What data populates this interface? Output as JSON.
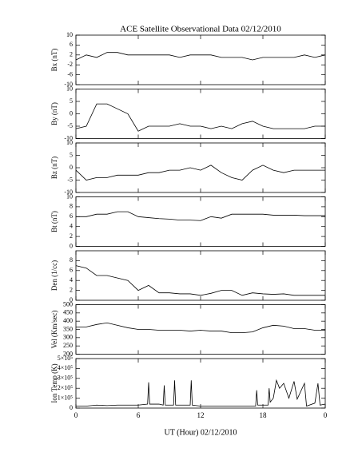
{
  "title": "ACE Satellite Observational Data   02/12/2010",
  "xlabel": "UT (Hour)  02/12/2010",
  "xlim": [
    0,
    24
  ],
  "xticks": [
    0,
    6,
    12,
    18,
    {
      "value": 24,
      "label": "0"
    }
  ],
  "chart_data": [
    {
      "type": "line",
      "ylabel": "Bx (nT)",
      "color": "#000000",
      "ylim": [
        -10,
        10
      ],
      "yticks": [
        -10,
        -6,
        -2,
        2,
        6,
        10
      ],
      "x": [
        0,
        1,
        2,
        3,
        4,
        5,
        6,
        7,
        8,
        9,
        10,
        11,
        12,
        13,
        14,
        15,
        16,
        17,
        18,
        19,
        20,
        21,
        22,
        23,
        24
      ],
      "values": [
        0,
        2,
        1,
        3,
        3,
        2,
        2,
        2,
        2,
        2,
        1,
        2,
        2,
        2,
        1,
        1,
        1,
        0,
        1,
        1,
        1,
        1,
        2,
        1,
        2
      ]
    },
    {
      "type": "line",
      "ylabel": "By (nT)",
      "color": "#000000",
      "ylim": [
        -10,
        10
      ],
      "yticks": [
        -10,
        -5,
        0,
        5,
        10
      ],
      "x": [
        0,
        1,
        2,
        3,
        4,
        5,
        6,
        7,
        8,
        9,
        10,
        11,
        12,
        13,
        14,
        15,
        16,
        17,
        18,
        19,
        20,
        21,
        22,
        23,
        24
      ],
      "values": [
        -6,
        -5,
        4,
        4,
        2,
        0,
        -7,
        -5,
        -5,
        -5,
        -4,
        -5,
        -5,
        -6,
        -5,
        -6,
        -4,
        -3,
        -5,
        -6,
        -6,
        -6,
        -6,
        -5,
        -5
      ]
    },
    {
      "type": "line",
      "ylabel": "Bz (nT)",
      "color": "#000000",
      "ylim": [
        -10,
        10
      ],
      "yticks": [
        -10,
        -5,
        0,
        5,
        10
      ],
      "x": [
        0,
        1,
        2,
        3,
        4,
        5,
        6,
        7,
        8,
        9,
        10,
        11,
        12,
        13,
        14,
        15,
        16,
        17,
        18,
        19,
        20,
        21,
        22,
        23,
        24
      ],
      "values": [
        -1,
        -5,
        -4,
        -4,
        -3,
        -3,
        -3,
        -2,
        -2,
        -1,
        -1,
        0,
        -1,
        1,
        -2,
        -4,
        -5,
        -1,
        1,
        -1,
        -2,
        -1,
        -1,
        -1,
        -1
      ]
    },
    {
      "type": "line",
      "ylabel": "Bt (nT)",
      "color": "#000000",
      "ylim": [
        0,
        10
      ],
      "yticks": [
        0,
        2,
        4,
        6,
        8,
        10
      ],
      "x": [
        0,
        1,
        2,
        3,
        4,
        5,
        6,
        7,
        8,
        9,
        10,
        11,
        12,
        13,
        14,
        15,
        16,
        17,
        18,
        19,
        20,
        21,
        22,
        23,
        24
      ],
      "values": [
        6,
        6,
        6.5,
        6.5,
        7,
        7,
        6,
        5.8,
        5.6,
        5.5,
        5.3,
        5.3,
        5.2,
        6,
        5.7,
        6.5,
        6.5,
        6.5,
        6.5,
        6.3,
        6.3,
        6.3,
        6.2,
        6.2,
        6.2
      ]
    },
    {
      "type": "line",
      "ylabel": "Den (1/cc)",
      "color": "#000000",
      "ylim": [
        0,
        10
      ],
      "yticks": [
        0,
        2,
        4,
        6,
        8
      ],
      "x": [
        0,
        1,
        2,
        3,
        4,
        5,
        6,
        7,
        8,
        9,
        10,
        11,
        12,
        13,
        14,
        15,
        16,
        17,
        18,
        19,
        20,
        21,
        22,
        23,
        24
      ],
      "values": [
        7,
        6.5,
        5,
        5,
        4.5,
        4,
        2,
        3,
        1.5,
        1.5,
        1.3,
        1.3,
        1,
        1.4,
        2,
        2,
        1,
        1.5,
        1.3,
        1.2,
        1.3,
        1,
        1,
        1,
        1
      ]
    },
    {
      "type": "line",
      "ylabel": "Vel (Km/sec)",
      "color": "#000000",
      "ylim": [
        200,
        500
      ],
      "yticks": [
        200,
        250,
        300,
        350,
        400,
        450,
        500
      ],
      "x": [
        0,
        1,
        2,
        3,
        4,
        5,
        6,
        7,
        8,
        9,
        10,
        11,
        12,
        13,
        14,
        15,
        16,
        17,
        18,
        19,
        20,
        21,
        22,
        23,
        24
      ],
      "values": [
        365,
        365,
        380,
        390,
        375,
        360,
        350,
        350,
        345,
        345,
        345,
        340,
        345,
        340,
        340,
        330,
        330,
        335,
        360,
        375,
        370,
        355,
        355,
        345,
        345
      ]
    },
    {
      "type": "line",
      "ylabel": "Ion Temp (K)",
      "color": "#000000",
      "ylim": [
        0,
        500000
      ],
      "yticks": [
        0,
        {
          "value": 100000,
          "label": "1×10⁵"
        },
        {
          "value": 200000,
          "label": "2×10⁵"
        },
        {
          "value": 300000,
          "label": "3×10⁵"
        },
        {
          "value": 400000,
          "label": "4×10⁵"
        },
        {
          "value": 500000,
          "label": "5×10⁵"
        }
      ],
      "x": [
        0,
        1,
        2,
        3,
        4,
        5,
        6,
        6.9,
        7,
        7.1,
        8,
        8.4,
        8.5,
        8.6,
        9.4,
        9.5,
        9.6,
        11,
        11.1,
        11.2,
        12,
        14,
        16,
        17.3,
        17.4,
        17.5,
        18.5,
        18.6,
        18.7,
        19,
        19.3,
        19.6,
        20,
        20.5,
        21,
        21.3,
        22,
        22.2,
        23,
        23.3,
        23.5,
        24
      ],
      "values": [
        20000,
        20000,
        30000,
        25000,
        30000,
        30000,
        30000,
        40000,
        260000,
        40000,
        40000,
        30000,
        230000,
        30000,
        30000,
        280000,
        30000,
        30000,
        280000,
        30000,
        20000,
        20000,
        20000,
        20000,
        180000,
        30000,
        30000,
        200000,
        60000,
        100000,
        280000,
        200000,
        250000,
        100000,
        270000,
        90000,
        250000,
        20000,
        50000,
        250000,
        30000,
        40000
      ]
    }
  ]
}
